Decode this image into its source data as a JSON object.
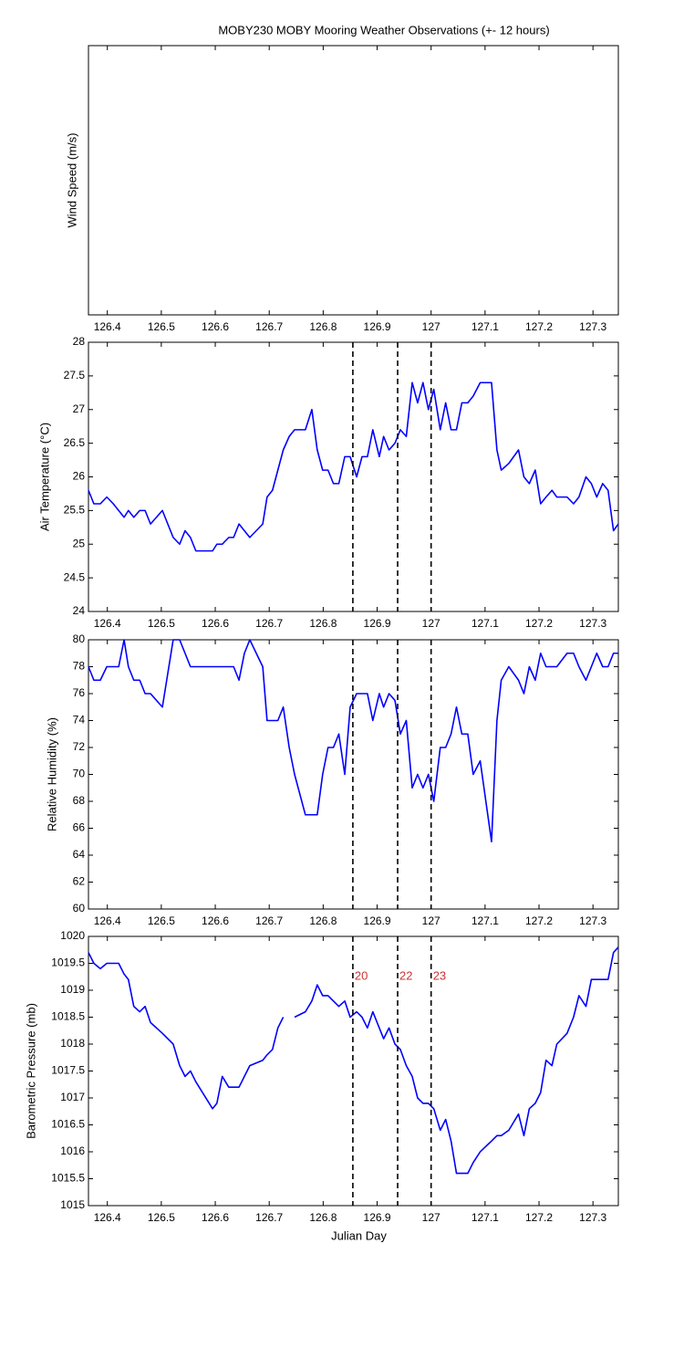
{
  "chart_data": [
    {
      "type": "line",
      "title": "MOBY230 MOBY Mooring Weather Observations (+- 12 hours)",
      "ylabel": "Wind Speed (m/s)",
      "xlim": [
        126.365,
        127.347
      ],
      "xticks": [
        126.4,
        126.5,
        126.6,
        126.7,
        126.8,
        126.9,
        127,
        127.1,
        127.2,
        127.3
      ]
    },
    {
      "type": "line",
      "ylabel": "Air Temperature (°C)",
      "color": "#0000ff",
      "xlim": [
        126.365,
        127.347
      ],
      "xticks": [
        126.4,
        126.5,
        126.6,
        126.7,
        126.8,
        126.9,
        127,
        127.1,
        127.2,
        127.3
      ],
      "ylim": [
        24,
        28
      ],
      "yticks": [
        24,
        24.5,
        25,
        25.5,
        26,
        26.5,
        27,
        27.5,
        28
      ],
      "vlines": [
        126.855,
        126.938,
        127.0
      ],
      "x": [
        126.365,
        126.375,
        126.387,
        126.399,
        126.411,
        126.421,
        126.431,
        126.439,
        126.449,
        126.46,
        126.47,
        126.48,
        126.502,
        126.522,
        126.534,
        126.544,
        126.554,
        126.564,
        126.595,
        126.603,
        126.613,
        126.625,
        126.634,
        126.644,
        126.654,
        126.664,
        126.688,
        126.696,
        126.706,
        126.716,
        126.726,
        126.737,
        126.747,
        126.767,
        126.779,
        126.789,
        126.799,
        126.809,
        126.819,
        126.829,
        126.84,
        126.85,
        126.862,
        126.872,
        126.882,
        126.892,
        126.904,
        126.912,
        126.922,
        126.933,
        126.943,
        126.954,
        126.965,
        126.975,
        126.985,
        126.995,
        127.005,
        127.017,
        127.027,
        127.037,
        127.047,
        127.057,
        127.068,
        127.078,
        127.091,
        127.112,
        127.122,
        127.13,
        127.144,
        127.162,
        127.172,
        127.182,
        127.193,
        127.203,
        127.213,
        127.224,
        127.233,
        127.252,
        127.264,
        127.274,
        127.287,
        127.297,
        127.307,
        127.318,
        127.328,
        127.338,
        127.347
      ],
      "values": [
        25.8,
        25.6,
        25.6,
        25.7,
        25.6,
        25.5,
        25.4,
        25.5,
        25.4,
        25.5,
        25.5,
        25.3,
        25.5,
        25.1,
        25.0,
        25.2,
        25.1,
        24.9,
        24.9,
        25.0,
        25.0,
        25.1,
        25.1,
        25.3,
        25.2,
        25.1,
        25.3,
        25.7,
        25.8,
        26.1,
        26.4,
        26.6,
        26.7,
        26.7,
        27.0,
        26.4,
        26.1,
        26.1,
        25.9,
        25.9,
        26.3,
        26.3,
        26.0,
        26.3,
        26.3,
        26.7,
        26.3,
        26.6,
        26.4,
        26.5,
        26.7,
        26.6,
        27.4,
        27.1,
        27.4,
        27.0,
        27.3,
        26.7,
        27.1,
        26.7,
        26.7,
        27.1,
        27.1,
        27.2,
        27.4,
        27.4,
        26.4,
        26.1,
        26.2,
        26.4,
        26.0,
        25.9,
        26.1,
        25.6,
        25.7,
        25.8,
        25.7,
        25.7,
        25.6,
        25.7,
        26.0,
        25.9,
        25.7,
        25.9,
        25.8,
        25.2,
        25.3
      ]
    },
    {
      "type": "line",
      "ylabel": "Relative Humidity (%)",
      "color": "#0000ff",
      "xlim": [
        126.365,
        127.347
      ],
      "xticks": [
        126.4,
        126.5,
        126.6,
        126.7,
        126.8,
        126.9,
        127,
        127.1,
        127.2,
        127.3
      ],
      "ylim": [
        60,
        80
      ],
      "yticks": [
        60,
        62,
        64,
        66,
        68,
        70,
        72,
        74,
        76,
        78,
        80
      ],
      "vlines": [
        126.855,
        126.938,
        127.0
      ],
      "x": [
        126.365,
        126.375,
        126.387,
        126.399,
        126.411,
        126.421,
        126.431,
        126.439,
        126.449,
        126.46,
        126.47,
        126.48,
        126.502,
        126.522,
        126.534,
        126.544,
        126.554,
        126.564,
        126.595,
        126.603,
        126.613,
        126.625,
        126.634,
        126.644,
        126.654,
        126.664,
        126.688,
        126.696,
        126.706,
        126.716,
        126.726,
        126.737,
        126.747,
        126.767,
        126.779,
        126.789,
        126.799,
        126.809,
        126.819,
        126.829,
        126.84,
        126.85,
        126.862,
        126.872,
        126.882,
        126.892,
        126.904,
        126.912,
        126.922,
        126.933,
        126.943,
        126.954,
        126.965,
        126.975,
        126.985,
        126.995,
        127.005,
        127.017,
        127.027,
        127.037,
        127.047,
        127.057,
        127.068,
        127.078,
        127.091,
        127.112,
        127.122,
        127.13,
        127.144,
        127.162,
        127.172,
        127.182,
        127.193,
        127.203,
        127.213,
        127.224,
        127.233,
        127.252,
        127.264,
        127.274,
        127.287,
        127.297,
        127.307,
        127.318,
        127.328,
        127.338,
        127.347
      ],
      "values": [
        78,
        77,
        77,
        78,
        78,
        78,
        80,
        78,
        77,
        77,
        76,
        76,
        75,
        80,
        80,
        79,
        78,
        78,
        78,
        78,
        78,
        78,
        78,
        77,
        79,
        80,
        78,
        74,
        74,
        74,
        75,
        72,
        70,
        67,
        67,
        67,
        70,
        72,
        72,
        73,
        70,
        75,
        76,
        76,
        76,
        74,
        76,
        75,
        76,
        75.5,
        73,
        74,
        69,
        70,
        69,
        70,
        68,
        72,
        72,
        73,
        75,
        73,
        73,
        70,
        71,
        65,
        74,
        77,
        78,
        77,
        76,
        78,
        77,
        79,
        78,
        78,
        78,
        79,
        79,
        78,
        77,
        78,
        79,
        78,
        78,
        79,
        79
      ]
    },
    {
      "type": "line",
      "ylabel": "Barometric Pressure (mb)",
      "xlabel": "Julian Day",
      "color": "#0000ff",
      "xlim": [
        126.365,
        127.347
      ],
      "xticks": [
        126.4,
        126.5,
        126.6,
        126.7,
        126.8,
        126.9,
        127,
        127.1,
        127.2,
        127.3
      ],
      "ylim": [
        1015,
        1020
      ],
      "yticks": [
        1015,
        1015.5,
        1016,
        1016.5,
        1017,
        1017.5,
        1018,
        1018.5,
        1019,
        1019.5,
        1020
      ],
      "vlines": [
        126.855,
        126.938,
        127.0
      ],
      "vline_labels": [
        "20",
        "22",
        "23"
      ],
      "label_color": "#cc3333",
      "x": [
        126.365,
        126.375,
        126.387,
        126.399,
        126.411,
        126.421,
        126.431,
        126.439,
        126.449,
        126.46,
        126.47,
        126.48,
        126.502,
        126.522,
        126.534,
        126.544,
        126.554,
        126.564,
        126.595,
        126.603,
        126.613,
        126.625,
        126.634,
        126.644,
        126.654,
        126.664,
        126.688,
        126.696,
        126.706,
        126.716,
        126.726,
        126.737,
        126.747,
        126.767,
        126.779,
        126.789,
        126.799,
        126.809,
        126.819,
        126.829,
        126.84,
        126.85,
        126.862,
        126.872,
        126.882,
        126.892,
        126.904,
        126.912,
        126.922,
        126.933,
        126.943,
        126.954,
        126.965,
        126.975,
        126.985,
        126.995,
        127.005,
        127.017,
        127.027,
        127.037,
        127.047,
        127.057,
        127.068,
        127.078,
        127.091,
        127.112,
        127.122,
        127.13,
        127.144,
        127.162,
        127.172,
        127.182,
        127.193,
        127.203,
        127.213,
        127.224,
        127.233,
        127.252,
        127.264,
        127.274,
        127.287,
        127.297,
        127.307,
        127.318,
        127.328,
        127.338,
        127.347
      ],
      "values": [
        1019.7,
        1019.5,
        1019.4,
        1019.5,
        1019.5,
        1019.5,
        1019.3,
        1019.2,
        1018.7,
        1018.6,
        1018.7,
        1018.4,
        1018.2,
        1018.0,
        1017.6,
        1017.4,
        1017.5,
        1017.3,
        1016.8,
        1016.9,
        1017.4,
        1017.2,
        1017.2,
        1017.2,
        1017.4,
        1017.6,
        1017.7,
        1017.8,
        1017.9,
        1018.3,
        1018.5,
        null,
        1018.5,
        1018.6,
        1018.8,
        1019.1,
        1018.9,
        1018.9,
        1018.8,
        1018.7,
        1018.8,
        1018.5,
        1018.6,
        1018.5,
        1018.3,
        1018.6,
        1018.3,
        1018.1,
        1018.3,
        1018.0,
        1017.9,
        1017.6,
        1017.4,
        1017.0,
        1016.9,
        1016.9,
        1016.8,
        1016.4,
        1016.6,
        1016.2,
        1015.6,
        1015.6,
        1015.6,
        1015.8,
        1016.0,
        1016.2,
        1016.3,
        1016.3,
        1016.4,
        1016.7,
        1016.3,
        1016.8,
        1016.9,
        1017.1,
        1017.7,
        1017.6,
        1018.0,
        1018.2,
        1018.5,
        1018.9,
        1018.7,
        1019.2,
        1019.2,
        1019.2,
        1019.2,
        1019.7,
        1019.8
      ]
    }
  ]
}
